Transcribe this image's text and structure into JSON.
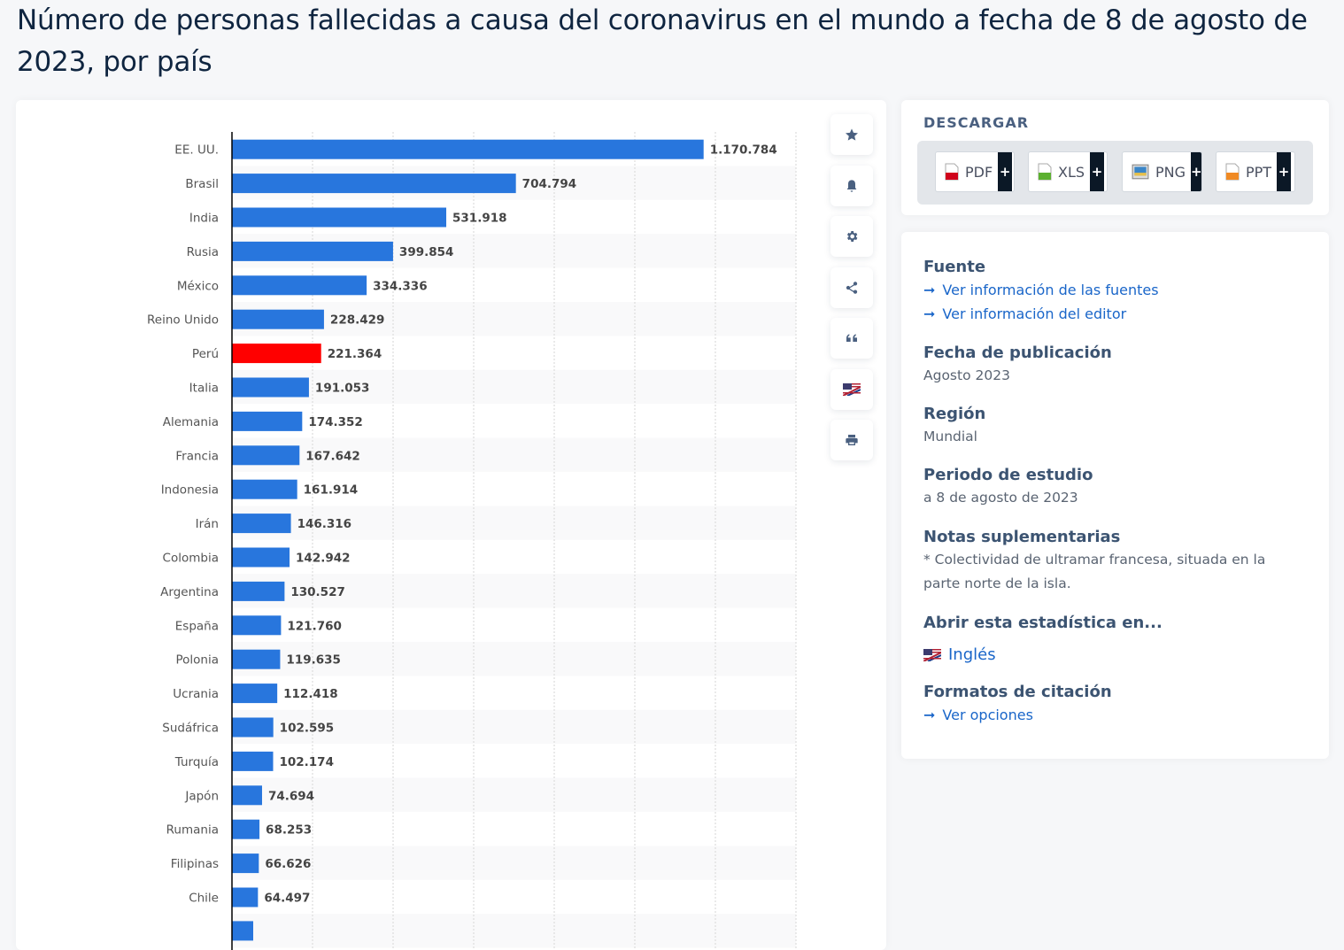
{
  "page": {
    "title": "Número de personas fallecidas a causa del coronavirus en el mundo a fecha de 8 de agosto de 2023, por país"
  },
  "toolbar": {
    "icons": [
      "star-icon",
      "bell-icon",
      "gear-icon",
      "share-icon",
      "quote-icon",
      "flag-icon",
      "print-icon"
    ]
  },
  "download": {
    "title": "DESCARGAR",
    "buttons": [
      {
        "label": "PDF",
        "plus": "+",
        "icon": "pdf-file-icon",
        "color": "#d0021b"
      },
      {
        "label": "XLS",
        "plus": "+",
        "icon": "xls-file-icon",
        "color": "#5cb030"
      },
      {
        "label": "PNG",
        "plus": "+",
        "icon": "png-file-icon",
        "color": "#3a86c8"
      },
      {
        "label": "PPT",
        "plus": "+",
        "icon": "ppt-file-icon",
        "color": "#f08a24"
      }
    ]
  },
  "info": {
    "source": {
      "heading": "Fuente",
      "links": [
        "Ver información de las fuentes",
        "Ver información del editor"
      ]
    },
    "published": {
      "heading": "Fecha de publicación",
      "value": "Agosto 2023"
    },
    "region": {
      "heading": "Región",
      "value": "Mundial"
    },
    "period": {
      "heading": "Periodo de estudio",
      "value": "a 8 de agosto de 2023"
    },
    "notes": {
      "heading": "Notas suplementarias",
      "lines": [
        "* Colectividad de ultramar francesa, situada en la",
        "parte norte de la isla."
      ]
    },
    "open_in": {
      "heading": "Abrir esta estadística en...",
      "link": "Inglés"
    },
    "citation": {
      "heading": "Formatos de citación",
      "link": "Ver opciones"
    }
  },
  "chart_data": {
    "type": "bar",
    "orientation": "horizontal",
    "title": "Número de personas fallecidas a causa del coronavirus en el mundo a fecha de 8 de agosto de 2023, por país",
    "xlabel": "",
    "ylabel": "",
    "xlim": [
      0,
      1400000
    ],
    "grid": true,
    "legend": "none",
    "colors": {
      "default": "#2876dd",
      "highlight": "#ff0000"
    },
    "highlight": "Perú",
    "categories": [
      "EE. UU.",
      "Brasil",
      "India",
      "Rusia",
      "México",
      "Reino Unido",
      "Perú",
      "Italia",
      "Alemania",
      "Francia",
      "Indonesia",
      "Irán",
      "Colombia",
      "Argentina",
      "España",
      "Polonia",
      "Ucrania",
      "Sudáfrica",
      "Turquía",
      "Japón",
      "Rumania",
      "Filipinas",
      "Chile"
    ],
    "values": [
      1170784,
      704794,
      531918,
      399854,
      334336,
      228429,
      221364,
      191053,
      174352,
      167642,
      161914,
      146316,
      142942,
      130527,
      121760,
      119635,
      112418,
      102595,
      102174,
      74694,
      68253,
      66626,
      64497
    ],
    "labels": [
      "1.170.784",
      "704.794",
      "531.918",
      "399.854",
      "334.336",
      "228.429",
      "221.364",
      "191.053",
      "174.352",
      "167.642",
      "161.914",
      "146.316",
      "142.942",
      "130.527",
      "121.760",
      "119.635",
      "112.418",
      "102.595",
      "102.174",
      "74.694",
      "68.253",
      "66.626",
      "64.497"
    ]
  }
}
